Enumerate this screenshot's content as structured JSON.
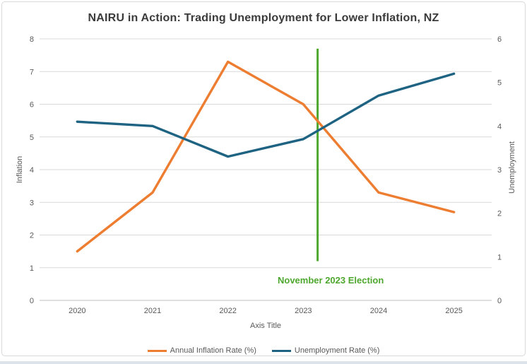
{
  "title": "NAIRU in Action: Trading Unemployment for Lower Inflation, NZ",
  "chart_data": {
    "type": "line",
    "categories": [
      2020,
      2021,
      2022,
      2023,
      2024,
      2025
    ],
    "series": [
      {
        "name": "Annual Inflation Rate (%)",
        "axis": "left",
        "color": "#ED7D31",
        "values": [
          1.5,
          3.3,
          7.3,
          6.0,
          3.3,
          2.7
        ]
      },
      {
        "name": "Unemployment Rate (%)",
        "axis": "right",
        "color": "#1F6383",
        "values": [
          4.1,
          4.0,
          3.3,
          3.7,
          4.7,
          5.2
        ]
      }
    ],
    "left_axis": {
      "label": "Inflation",
      "min": 0,
      "max": 8,
      "step": 1
    },
    "right_axis": {
      "label": "Unemployment",
      "min": 0,
      "max": 6,
      "step": 1
    },
    "x_axis": {
      "label": "Axis Title"
    },
    "annotation": {
      "text": "November 2023 Election",
      "color": "#4EA72E",
      "x_position": 2023.19,
      "line_top_value": 7.7,
      "line_bottom_value": 1.2
    },
    "grid": "horizontal-left-axis-only",
    "legend_position": "bottom"
  },
  "colors": {
    "gridline": "#d9d9d9",
    "axis_line": "#bfbfbf",
    "tick_text": "#595959",
    "title_text": "#3b3b3b",
    "chart_border": "#d9d9d9",
    "bottom_strip": "#dde3eb"
  }
}
